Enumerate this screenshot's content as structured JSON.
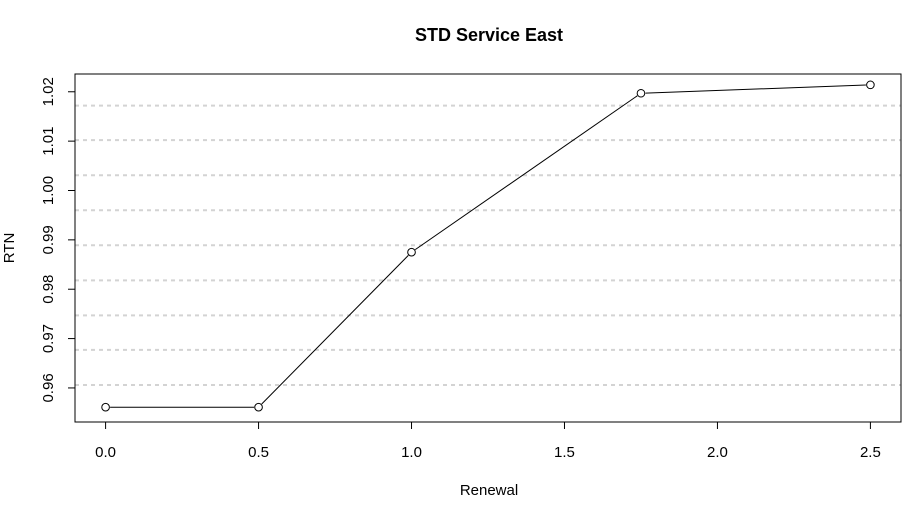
{
  "chart_data": {
    "type": "line",
    "title": "STD Service East",
    "xlabel": "Renewal",
    "ylabel": "RTN",
    "x": [
      0.0,
      0.5,
      1.0,
      1.75,
      2.5
    ],
    "series": [
      {
        "values": [
          0.9561,
          0.9561,
          0.9875,
          1.0197,
          1.0214
        ]
      }
    ],
    "xlim": [
      -0.1,
      2.6
    ],
    "ylim": [
      0.9531,
      1.0236
    ],
    "xticks": [
      "0.0",
      "0.5",
      "1.0",
      "1.5",
      "2.0",
      "2.5"
    ],
    "yticks": [
      "0.96",
      "0.97",
      "0.98",
      "0.99",
      "1.00",
      "1.01",
      "1.02"
    ],
    "ygrid": [
      0.9606,
      0.9677,
      0.9747,
      0.9818,
      0.9889,
      0.996,
      1.0031,
      1.0102,
      1.0172
    ],
    "grid": "horizontal dashed",
    "markers": "open-circle",
    "legend": "none"
  }
}
